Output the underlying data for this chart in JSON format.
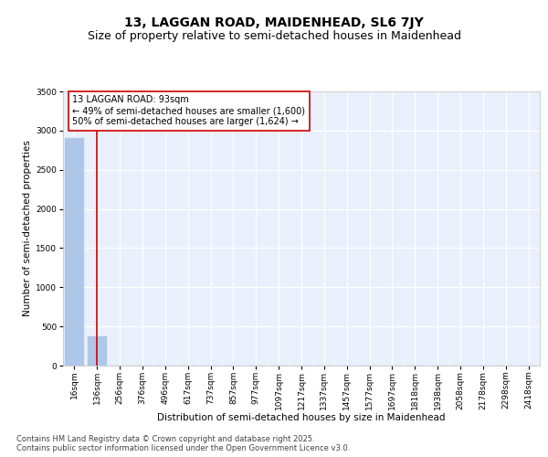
{
  "title_line1": "13, LAGGAN ROAD, MAIDENHEAD, SL6 7JY",
  "title_line2": "Size of property relative to semi-detached houses in Maidenhead",
  "xlabel": "Distribution of semi-detached houses by size in Maidenhead",
  "ylabel": "Number of semi-detached properties",
  "bar_labels": [
    "16sqm",
    "136sqm",
    "256sqm",
    "376sqm",
    "496sqm",
    "617sqm",
    "737sqm",
    "857sqm",
    "977sqm",
    "1097sqm",
    "1217sqm",
    "1337sqm",
    "1457sqm",
    "1577sqm",
    "1697sqm",
    "1818sqm",
    "1938sqm",
    "2058sqm",
    "2178sqm",
    "2298sqm",
    "2418sqm"
  ],
  "bar_values": [
    2900,
    370,
    0,
    0,
    0,
    0,
    0,
    0,
    0,
    0,
    0,
    0,
    0,
    0,
    0,
    0,
    0,
    0,
    0,
    0,
    0
  ],
  "bar_color": "#aec6e8",
  "bar_edge_color": "#aec6e8",
  "vline_x": 1,
  "vline_color": "#cc0000",
  "annotation_text": "13 LAGGAN ROAD: 93sqm\n← 49% of semi-detached houses are smaller (1,600)\n50% of semi-detached houses are larger (1,624) →",
  "annotation_box_color": "#ffffff",
  "annotation_edge_color": "#cc0000",
  "ylim": [
    0,
    3500
  ],
  "yticks": [
    0,
    500,
    1000,
    1500,
    2000,
    2500,
    3000,
    3500
  ],
  "background_color": "#eaf0fb",
  "grid_color": "#ffffff",
  "footnote": "Contains HM Land Registry data © Crown copyright and database right 2025.\nContains public sector information licensed under the Open Government Licence v3.0.",
  "title_fontsize": 10,
  "subtitle_fontsize": 9,
  "label_fontsize": 7.5,
  "tick_fontsize": 6.5,
  "annotation_fontsize": 7,
  "footnote_fontsize": 6
}
